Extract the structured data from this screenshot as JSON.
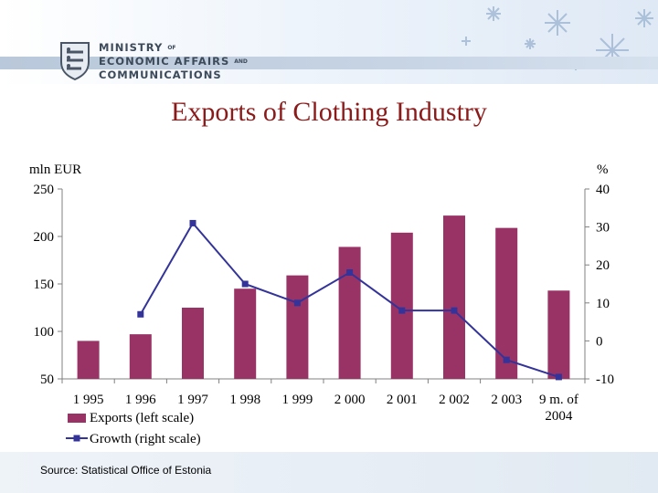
{
  "header": {
    "ministry_line1": "MINISTRY",
    "ministry_line1_small": "OF",
    "ministry_line2": "ECONOMIC AFFAIRS",
    "ministry_line2_small": "AND",
    "ministry_line3": "COMMUNICATIONS"
  },
  "chart_data": {
    "type": "bar",
    "title": "Exports of Clothing Industry",
    "ylabel_left": "mln EUR",
    "ylabel_right": "%",
    "categories": [
      "1 995",
      "1 996",
      "1 997",
      "1 998",
      "1 999",
      "2 000",
      "2 001",
      "2 002",
      "2 003",
      "9 m. of 2004"
    ],
    "ylim_left": [
      50,
      250
    ],
    "ylim_right": [
      -10,
      40
    ],
    "left_ticks": [
      250,
      200,
      150,
      100,
      50
    ],
    "right_ticks": [
      40,
      30,
      20,
      10,
      0,
      -10
    ],
    "grid": false,
    "series": [
      {
        "name": "Exports (left scale)",
        "kind": "bar",
        "axis": "left",
        "color": "#993366",
        "values": [
          90,
          97,
          125,
          145,
          159,
          189,
          204,
          222,
          209,
          143
        ]
      },
      {
        "name": "Growth (right scale)",
        "kind": "line",
        "axis": "right",
        "color": "#333399",
        "values": [
          null,
          7,
          31,
          15,
          10,
          18,
          8,
          8,
          -5,
          -9.5
        ]
      }
    ]
  },
  "footer": {
    "source": "Source: Statistical Office of Estonia"
  }
}
